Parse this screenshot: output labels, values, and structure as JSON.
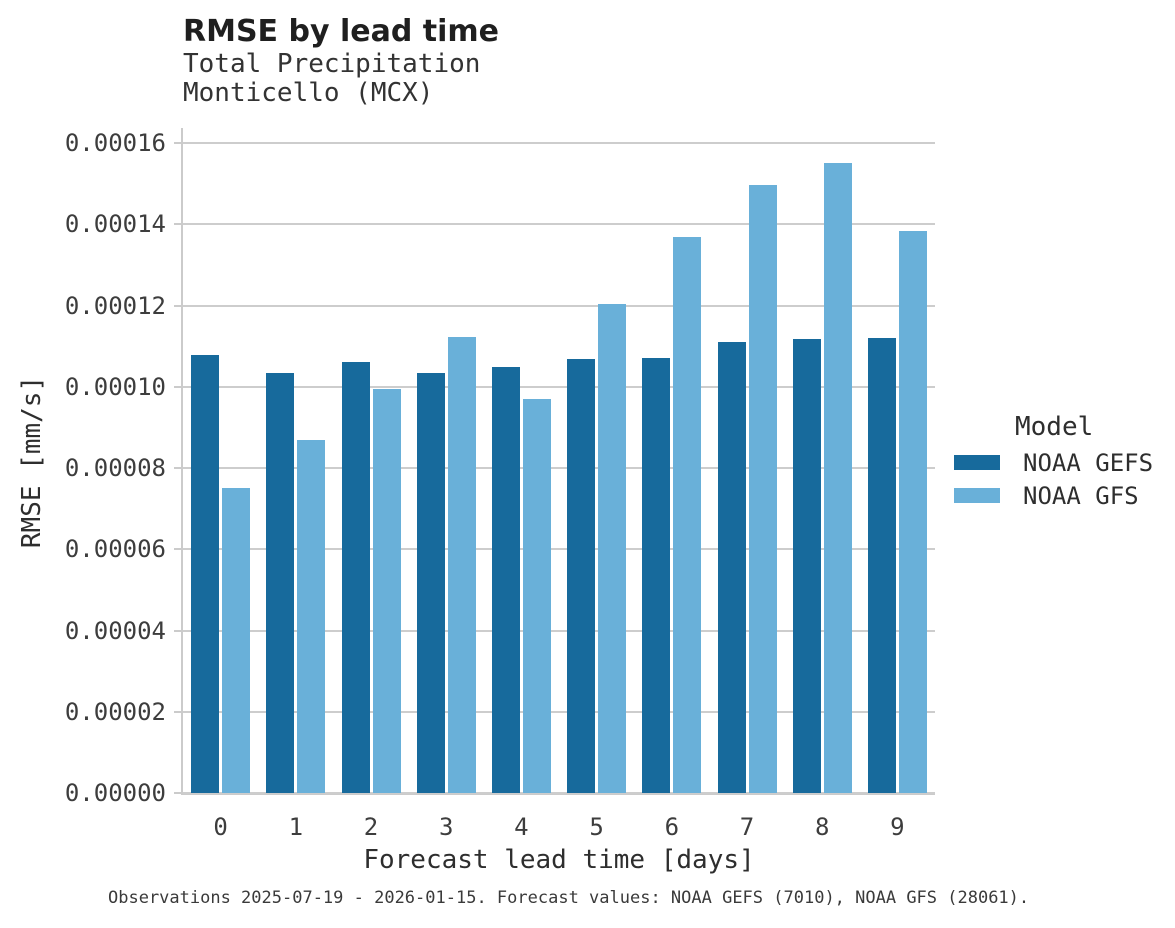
{
  "header": {
    "title": "RMSE by lead time",
    "subtitle_line1": "Total Precipitation",
    "subtitle_line2": "Monticello (MCX)"
  },
  "caption": "Observations 2025-07-19 - 2026-01-15. Forecast values: NOAA GEFS (7010), NOAA GFS (28061).",
  "legend": {
    "title": "Model",
    "items": [
      {
        "label": "NOAA GEFS",
        "color": "#176a9c"
      },
      {
        "label": "NOAA GFS",
        "color": "#69b0d9"
      }
    ]
  },
  "colors": {
    "gefs_bar": "#176a9c",
    "gfs_bar": "#69b0d9",
    "gridline": "#cdcdcd",
    "axis_line": "#cbcbcb",
    "background": "#ffffff"
  },
  "chart_data": {
    "type": "bar",
    "title": "RMSE by lead time",
    "subtitle": "Total Precipitation",
    "station": "Monticello (MCX)",
    "xlabel": "Forecast lead time [days]",
    "ylabel": "RMSE [mm/s]",
    "categories": [
      "0",
      "1",
      "2",
      "3",
      "4",
      "5",
      "6",
      "7",
      "8",
      "9"
    ],
    "series": [
      {
        "name": "NOAA GEFS",
        "color": "#176a9c",
        "values": [
          0.0001078,
          0.0001034,
          0.0001061,
          0.0001033,
          0.0001049,
          0.0001068,
          0.0001071,
          0.000111,
          0.0001118,
          0.000112
        ]
      },
      {
        "name": "NOAA GFS",
        "color": "#69b0d9",
        "values": [
          7.51e-05,
          8.69e-05,
          9.94e-05,
          0.0001122,
          9.7e-05,
          0.0001204,
          0.0001369,
          0.0001497,
          0.0001551,
          0.0001383
        ]
      }
    ],
    "ylim": [
      0,
      0.00016
    ],
    "y_ticks": [
      0,
      2e-05,
      4e-05,
      6e-05,
      8e-05,
      0.0001,
      0.00012,
      0.00014,
      0.00016
    ],
    "y_tick_labels": [
      "0.00000",
      "0.00002",
      "0.00004",
      "0.00006",
      "0.00008",
      "0.00010",
      "0.00012",
      "0.00014",
      "0.00016"
    ],
    "grid": "horizontal",
    "legend_title": "Model",
    "legend_position": "right"
  }
}
